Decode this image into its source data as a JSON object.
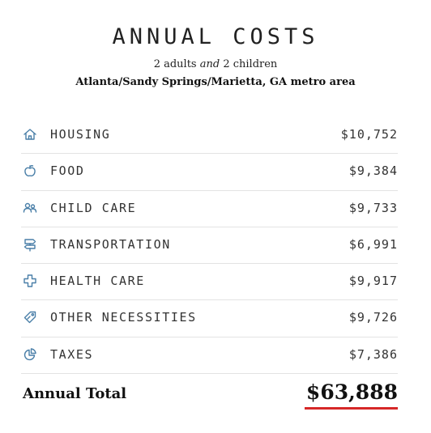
{
  "title": "ANNUAL COSTS",
  "subtitle": {
    "part1": "2 adults ",
    "part2": "and",
    "part3": " 2 children"
  },
  "location": "Atlanta/Sandy Springs/Marietta, GA metro area",
  "rows": [
    {
      "icon": "house-icon",
      "label": "HOUSING",
      "amount": "$10,752"
    },
    {
      "icon": "apple-icon",
      "label": "FOOD",
      "amount": "$9,384"
    },
    {
      "icon": "people-icon",
      "label": "CHILD CARE",
      "amount": "$9,733"
    },
    {
      "icon": "signpost-icon",
      "label": "TRANSPORTATION",
      "amount": "$6,991"
    },
    {
      "icon": "medical-cross-icon",
      "label": "HEALTH CARE",
      "amount": "$9,917"
    },
    {
      "icon": "tag-icon",
      "label": "OTHER NECESSITIES",
      "amount": "$9,726"
    },
    {
      "icon": "pie-chart-icon",
      "label": "TAXES",
      "amount": "$7,386"
    }
  ],
  "total": {
    "label": "Annual Total",
    "amount": "$63,888"
  },
  "colors": {
    "icon": "#4a7fa8",
    "accent_underline": "#d62828",
    "divider": "#e3e3e3"
  }
}
